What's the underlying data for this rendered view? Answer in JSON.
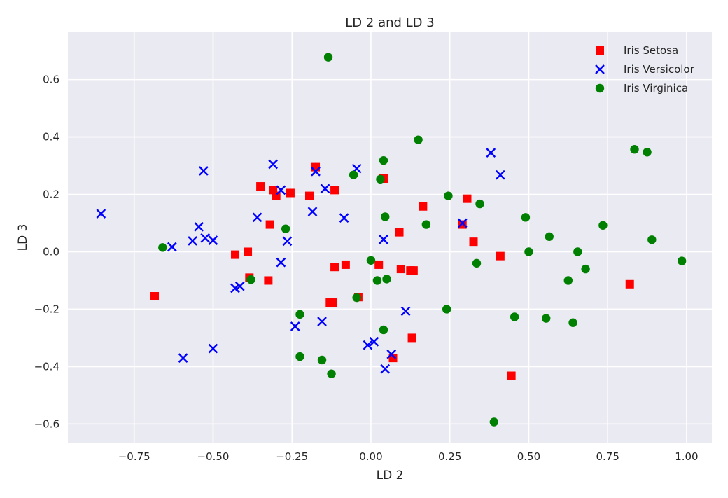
{
  "chart_data": {
    "type": "scatter",
    "title": "LD 2 and LD 3",
    "xlabel": "LD 2",
    "ylabel": "LD 3",
    "xlim": [
      -0.96,
      1.08
    ],
    "ylim": [
      -0.665,
      0.765
    ],
    "xticks": [
      -0.75,
      -0.5,
      -0.25,
      0.0,
      0.25,
      0.5,
      0.75,
      1.0
    ],
    "xtick_labels": [
      "−0.75",
      "−0.50",
      "−0.25",
      "0.00",
      "0.25",
      "0.50",
      "0.75",
      "1.00"
    ],
    "yticks": [
      -0.6,
      -0.4,
      -0.2,
      0.0,
      0.2,
      0.4,
      0.6
    ],
    "ytick_labels": [
      "−0.6",
      "−0.4",
      "−0.2",
      "0.0",
      "0.2",
      "0.4",
      "0.6"
    ],
    "grid": true,
    "legend_position": "top-right",
    "series": [
      {
        "name": "Iris Setosa",
        "marker": "square",
        "color": "#ff0000",
        "points": [
          [
            -0.685,
            -0.155
          ],
          [
            -0.43,
            -0.01
          ],
          [
            -0.39,
            0.0
          ],
          [
            -0.385,
            -0.09
          ],
          [
            -0.35,
            0.228
          ],
          [
            -0.325,
            -0.1
          ],
          [
            -0.32,
            0.095
          ],
          [
            -0.31,
            0.215
          ],
          [
            -0.3,
            0.195
          ],
          [
            -0.255,
            0.205
          ],
          [
            -0.195,
            0.195
          ],
          [
            -0.175,
            0.295
          ],
          [
            -0.13,
            -0.177
          ],
          [
            -0.12,
            -0.177
          ],
          [
            -0.115,
            -0.053
          ],
          [
            -0.115,
            0.215
          ],
          [
            -0.08,
            -0.045
          ],
          [
            -0.04,
            -0.158
          ],
          [
            0.025,
            -0.045
          ],
          [
            0.04,
            0.255
          ],
          [
            0.07,
            -0.37
          ],
          [
            0.09,
            0.068
          ],
          [
            0.095,
            -0.06
          ],
          [
            0.125,
            -0.065
          ],
          [
            0.135,
            -0.065
          ],
          [
            0.13,
            -0.3
          ],
          [
            0.165,
            0.158
          ],
          [
            0.29,
            0.095
          ],
          [
            0.305,
            0.185
          ],
          [
            0.325,
            0.035
          ],
          [
            0.41,
            -0.015
          ],
          [
            0.445,
            -0.432
          ],
          [
            0.82,
            -0.113
          ]
        ]
      },
      {
        "name": "Iris Versicolor",
        "marker": "x",
        "color": "#0000ff",
        "points": [
          [
            -0.855,
            0.133
          ],
          [
            -0.63,
            0.017
          ],
          [
            -0.595,
            -0.37
          ],
          [
            -0.565,
            0.038
          ],
          [
            -0.545,
            0.087
          ],
          [
            -0.53,
            0.282
          ],
          [
            -0.525,
            0.048
          ],
          [
            -0.5,
            0.04
          ],
          [
            -0.5,
            -0.337
          ],
          [
            -0.43,
            -0.127
          ],
          [
            -0.415,
            -0.12
          ],
          [
            -0.36,
            0.12
          ],
          [
            -0.31,
            0.305
          ],
          [
            -0.285,
            -0.037
          ],
          [
            -0.285,
            0.215
          ],
          [
            -0.265,
            0.037
          ],
          [
            -0.24,
            -0.26
          ],
          [
            -0.185,
            0.14
          ],
          [
            -0.175,
            0.28
          ],
          [
            -0.155,
            -0.243
          ],
          [
            -0.145,
            0.22
          ],
          [
            -0.085,
            0.118
          ],
          [
            -0.045,
            0.29
          ],
          [
            -0.01,
            -0.325
          ],
          [
            0.01,
            -0.313
          ],
          [
            0.04,
            0.043
          ],
          [
            0.045,
            -0.408
          ],
          [
            0.065,
            -0.357
          ],
          [
            0.11,
            -0.207
          ],
          [
            0.29,
            0.1
          ],
          [
            0.38,
            0.345
          ],
          [
            0.41,
            0.268
          ]
        ]
      },
      {
        "name": "Iris Virginica",
        "marker": "circle",
        "color": "#008000",
        "points": [
          [
            -0.66,
            0.015
          ],
          [
            -0.38,
            -0.097
          ],
          [
            -0.27,
            0.08
          ],
          [
            -0.225,
            -0.218
          ],
          [
            -0.225,
            -0.365
          ],
          [
            -0.155,
            -0.377
          ],
          [
            -0.135,
            0.678
          ],
          [
            -0.125,
            -0.425
          ],
          [
            -0.055,
            0.268
          ],
          [
            -0.045,
            -0.16
          ],
          [
            0.0,
            -0.03
          ],
          [
            0.02,
            -0.1
          ],
          [
            0.03,
            0.253
          ],
          [
            0.04,
            0.318
          ],
          [
            0.04,
            -0.272
          ],
          [
            0.045,
            0.122
          ],
          [
            0.05,
            -0.095
          ],
          [
            0.15,
            0.39
          ],
          [
            0.175,
            0.095
          ],
          [
            0.24,
            -0.2
          ],
          [
            0.245,
            0.195
          ],
          [
            0.335,
            -0.04
          ],
          [
            0.345,
            0.167
          ],
          [
            0.455,
            -0.227
          ],
          [
            0.49,
            0.12
          ],
          [
            0.5,
            0.0
          ],
          [
            0.555,
            -0.232
          ],
          [
            0.565,
            0.053
          ],
          [
            0.625,
            -0.1
          ],
          [
            0.64,
            -0.247
          ],
          [
            0.655,
            0.0
          ],
          [
            0.68,
            -0.06
          ],
          [
            0.735,
            0.092
          ],
          [
            0.835,
            0.357
          ],
          [
            0.875,
            0.347
          ],
          [
            0.89,
            0.042
          ],
          [
            0.985,
            -0.032
          ],
          [
            0.39,
            -0.593
          ]
        ]
      }
    ]
  }
}
